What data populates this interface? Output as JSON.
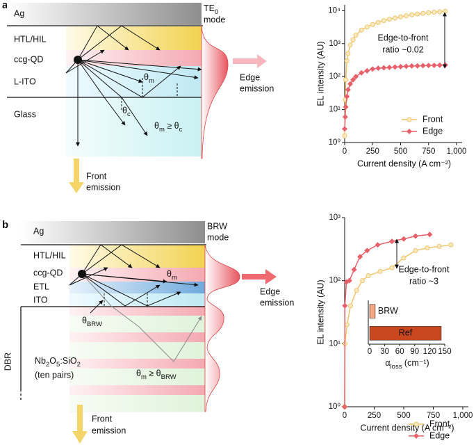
{
  "diagram_a": {
    "panel_label": "a",
    "layers": [
      "Ag",
      "HTL/HIL",
      "ccg-QD",
      "L-ITO",
      "Glass"
    ],
    "mode_line1": [
      "TE",
      "0"
    ],
    "mode_line2": "mode",
    "edge_emission": [
      "Edge",
      "emission"
    ],
    "front_emission": [
      "Front",
      "emission"
    ],
    "theta_m": [
      "θ",
      "m"
    ],
    "theta_c": [
      "θ",
      "c"
    ],
    "condition": [
      "θ",
      "m",
      " ≥ θ",
      "c"
    ]
  },
  "diagram_b": {
    "panel_label": "b",
    "layers": [
      "Ag",
      "HTL/HIL",
      "ccg-QD",
      "ETL",
      "ITO"
    ],
    "mode_line1": "BRW",
    "mode_line2": "mode",
    "edge_emission": [
      "Edge",
      "emission"
    ],
    "front_emission": [
      "Front",
      "emission"
    ],
    "theta_m": [
      "θ",
      "m"
    ],
    "theta_brw": [
      "θ",
      "BRW"
    ],
    "dbr": "DBR",
    "material": [
      "Nb",
      "2",
      "O",
      "5",
      ":SiO",
      "2"
    ],
    "material_note": "(ten pairs)",
    "condition": [
      "θ",
      "m",
      " ≥ θ",
      "BRW"
    ]
  },
  "chart_data": [
    {
      "type": "line",
      "log_y": true,
      "xlabel": "Current density (A cm⁻²)",
      "ylabel": "EL intensity (AU)",
      "annotation": [
        "Edge-to-front",
        "ratio ~0.02"
      ],
      "legend": "lower right",
      "xlim": [
        0,
        1000
      ],
      "xticks": [
        0,
        250,
        500,
        750,
        {
          "value": 1000,
          "label": "1,000"
        }
      ],
      "ylim": [
        1,
        15000
      ],
      "yticks": [
        {
          "value": 1,
          "label": "10⁰"
        },
        {
          "value": 10,
          "label": "10¹"
        },
        {
          "value": 100,
          "label": "10²"
        },
        {
          "value": 1000,
          "label": "10³"
        },
        {
          "value": 10000,
          "label": "10⁴"
        }
      ],
      "series": [
        {
          "name": "Front",
          "color": "#efc46a",
          "marker": "circle",
          "x": [
            0,
            5,
            10,
            20,
            30,
            50,
            75,
            100,
            150,
            200,
            250,
            300,
            350,
            400,
            450,
            500,
            550,
            600,
            650,
            700,
            750,
            800,
            850,
            900
          ],
          "values": [
            1.6,
            20,
            80,
            300,
            500,
            900,
            1300,
            1800,
            2600,
            3200,
            3800,
            4400,
            5000,
            5500,
            6000,
            6500,
            7000,
            7500,
            7900,
            8300,
            8700,
            9000,
            9300,
            9600
          ]
        },
        {
          "name": "Edge",
          "color": "#e8606a",
          "marker": "diamond",
          "x": [
            0,
            5,
            10,
            20,
            30,
            50,
            75,
            100,
            150,
            200,
            250,
            300,
            350,
            400,
            450,
            500,
            550,
            600,
            650,
            700,
            750,
            800,
            850,
            900
          ],
          "values": [
            2.6,
            6,
            12,
            25,
            40,
            60,
            80,
            100,
            130,
            150,
            170,
            180,
            185,
            190,
            195,
            200,
            205,
            210,
            212,
            215,
            218,
            220,
            222,
            225
          ]
        }
      ]
    },
    {
      "type": "line",
      "log_y": true,
      "xlabel": "Current density (A cm⁻²)",
      "ylabel": "EL intensity (AU)",
      "annotation": [
        "Edge-to-front",
        "ratio ~3"
      ],
      "legend": "lower right",
      "xlim": [
        0,
        1000
      ],
      "xticks": [
        0,
        250,
        500,
        750,
        {
          "value": 1000,
          "label": "1,000"
        }
      ],
      "ylim": [
        1,
        1000
      ],
      "yticks": [
        {
          "value": 1,
          "label": "10⁰"
        },
        {
          "value": 10,
          "label": "10¹"
        },
        {
          "value": 100,
          "label": "10²"
        },
        {
          "value": 1000,
          "label": "10³"
        }
      ],
      "series": [
        {
          "name": "Front",
          "color": "#efc46a",
          "marker": "circle",
          "x": [
            0,
            3,
            20,
            50,
            100,
            150,
            200,
            300,
            400,
            500,
            600,
            700,
            800,
            900
          ],
          "values": [
            1,
            10,
            20,
            40,
            70,
            100,
            120,
            140,
            160,
            230,
            300,
            330,
            350,
            370
          ]
        },
        {
          "name": "Edge",
          "color": "#e8606a",
          "marker": "diamond",
          "x": [
            0,
            2,
            15,
            40,
            80,
            130,
            190,
            280,
            400,
            500,
            600,
            720
          ],
          "values": [
            1,
            40,
            95,
            100,
            150,
            240,
            300,
            370,
            420,
            460,
            510,
            540
          ]
        }
      ]
    },
    {
      "type": "bar",
      "orientation": "horizontal",
      "categories": [
        "BRW",
        "Ref"
      ],
      "values": [
        11,
        143
      ],
      "colors": [
        "#f4a582",
        "#c9461f"
      ],
      "xlabel": [
        "α",
        "loss",
        " (cm⁻¹)"
      ],
      "xlim": [
        0,
        150
      ],
      "xticks": [
        0,
        30,
        60,
        90,
        120,
        150
      ]
    }
  ]
}
